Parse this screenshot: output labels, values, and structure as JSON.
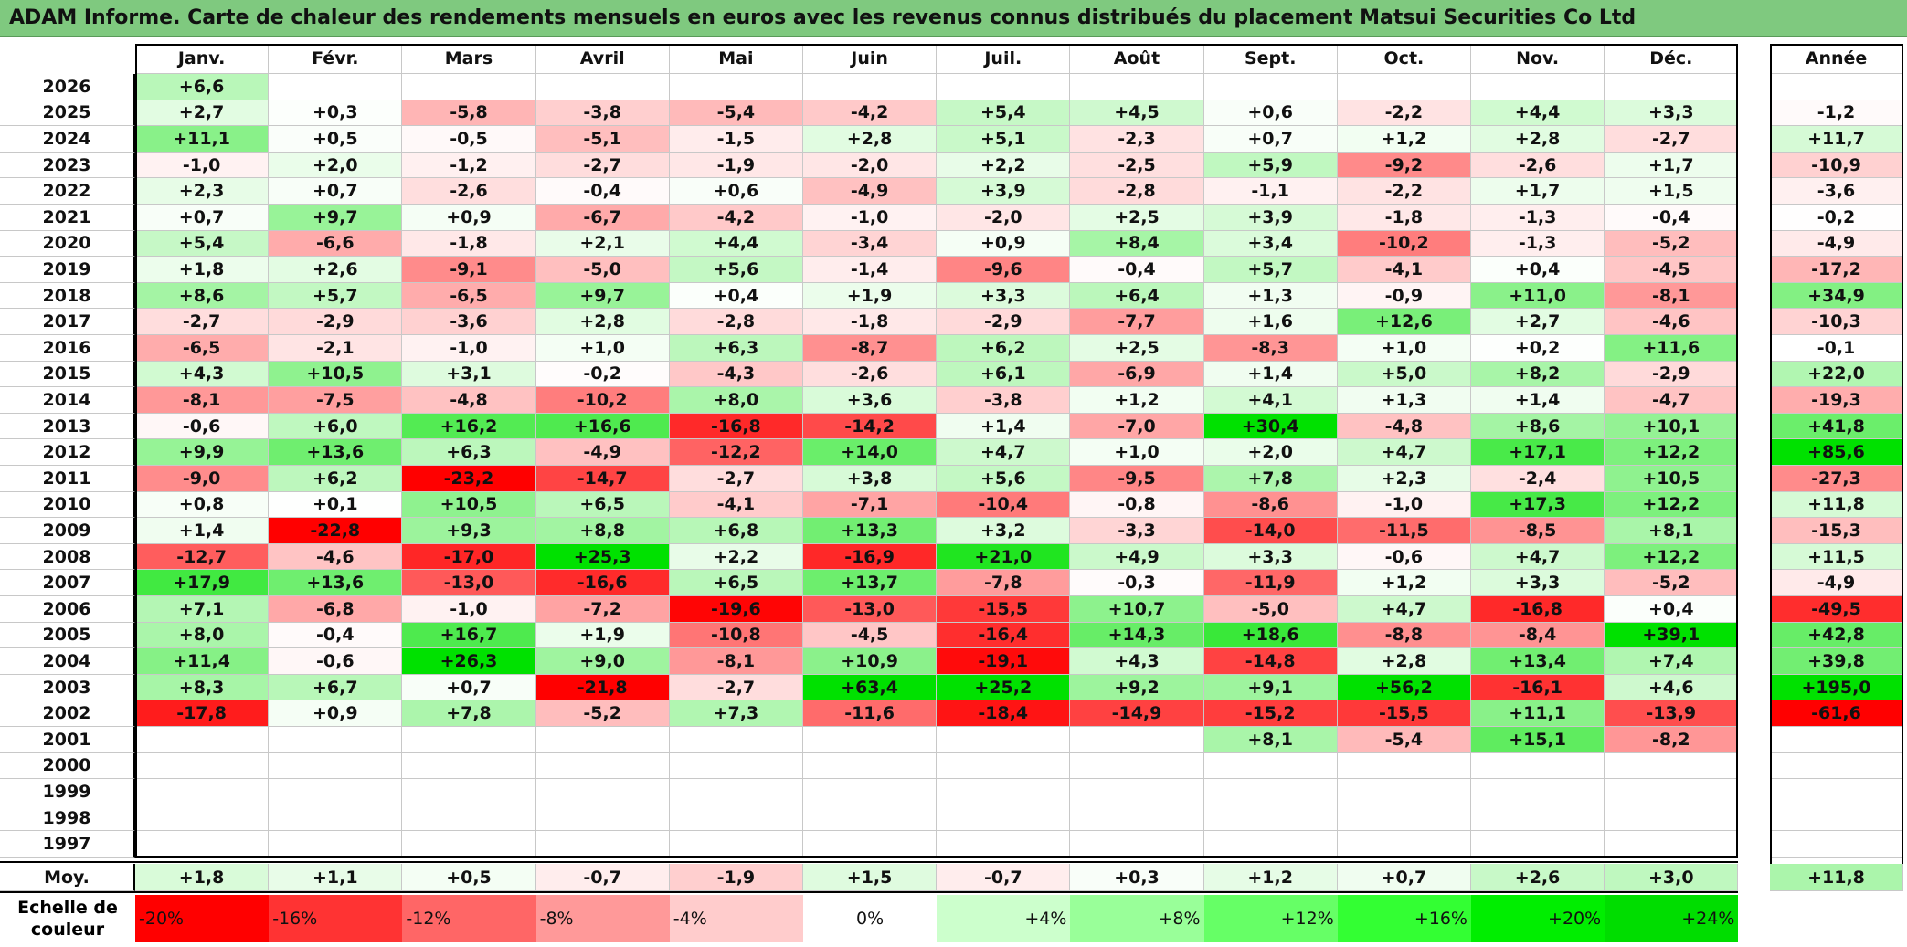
{
  "title": "ADAM Informe. Carte de chaleur des rendements mensuels en euros avec les revenus connus distribués du placement Matsui Securities Co Ltd",
  "chart_data": {
    "type": "heatmap",
    "columns": [
      "Janv.",
      "Févr.",
      "Mars",
      "Avril",
      "Mai",
      "Juin",
      "Juil.",
      "Août",
      "Sept.",
      "Oct.",
      "Nov.",
      "Déc."
    ],
    "year_column": "Année",
    "rows": [
      {
        "year": "2026",
        "months": [
          "+6,6",
          "",
          "",
          "",
          "",
          "",
          "",
          "",
          "",
          "",
          "",
          ""
        ],
        "annual": ""
      },
      {
        "year": "2025",
        "months": [
          "+2,7",
          "+0,3",
          "-5,8",
          "-3,8",
          "-5,4",
          "-4,2",
          "+5,4",
          "+4,5",
          "+0,6",
          "-2,2",
          "+4,4",
          "+3,3"
        ],
        "annual": "-1,2"
      },
      {
        "year": "2024",
        "months": [
          "+11,1",
          "+0,5",
          "-0,5",
          "-5,1",
          "-1,5",
          "+2,8",
          "+5,1",
          "-2,3",
          "+0,7",
          "+1,2",
          "+2,8",
          "-2,7"
        ],
        "annual": "+11,7"
      },
      {
        "year": "2023",
        "months": [
          "-1,0",
          "+2,0",
          "-1,2",
          "-2,7",
          "-1,9",
          "-2,0",
          "+2,2",
          "-2,5",
          "+5,9",
          "-9,2",
          "-2,6",
          "+1,7"
        ],
        "annual": "-10,9"
      },
      {
        "year": "2022",
        "months": [
          "+2,3",
          "+0,7",
          "-2,6",
          "-0,4",
          "+0,6",
          "-4,9",
          "+3,9",
          "-2,8",
          "-1,1",
          "-2,2",
          "+1,7",
          "+1,5"
        ],
        "annual": "-3,6"
      },
      {
        "year": "2021",
        "months": [
          "+0,7",
          "+9,7",
          "+0,9",
          "-6,7",
          "-4,2",
          "-1,0",
          "-2,0",
          "+2,5",
          "+3,9",
          "-1,8",
          "-1,3",
          "-0,4"
        ],
        "annual": "-0,2"
      },
      {
        "year": "2020",
        "months": [
          "+5,4",
          "-6,6",
          "-1,8",
          "+2,1",
          "+4,4",
          "-3,4",
          "+0,9",
          "+8,4",
          "+3,4",
          "-10,2",
          "-1,3",
          "-5,2"
        ],
        "annual": "-4,9"
      },
      {
        "year": "2019",
        "months": [
          "+1,8",
          "+2,6",
          "-9,1",
          "-5,0",
          "+5,6",
          "-1,4",
          "-9,6",
          "-0,4",
          "+5,7",
          "-4,1",
          "+0,4",
          "-4,5"
        ],
        "annual": "-17,2"
      },
      {
        "year": "2018",
        "months": [
          "+8,6",
          "+5,7",
          "-6,5",
          "+9,7",
          "+0,4",
          "+1,9",
          "+3,3",
          "+6,4",
          "+1,3",
          "-0,9",
          "+11,0",
          "-8,1"
        ],
        "annual": "+34,9"
      },
      {
        "year": "2017",
        "months": [
          "-2,7",
          "-2,9",
          "-3,6",
          "+2,8",
          "-2,8",
          "-1,8",
          "-2,9",
          "-7,7",
          "+1,6",
          "+12,6",
          "+2,7",
          "-4,6"
        ],
        "annual": "-10,3"
      },
      {
        "year": "2016",
        "months": [
          "-6,5",
          "-2,1",
          "-1,0",
          "+1,0",
          "+6,3",
          "-8,7",
          "+6,2",
          "+2,5",
          "-8,3",
          "+1,0",
          "+0,2",
          "+11,6"
        ],
        "annual": "-0,1"
      },
      {
        "year": "2015",
        "months": [
          "+4,3",
          "+10,5",
          "+3,1",
          "-0,2",
          "-4,3",
          "-2,6",
          "+6,1",
          "-6,9",
          "+1,4",
          "+5,0",
          "+8,2",
          "-2,9"
        ],
        "annual": "+22,0"
      },
      {
        "year": "2014",
        "months": [
          "-8,1",
          "-7,5",
          "-4,8",
          "-10,2",
          "+8,0",
          "+3,6",
          "-3,8",
          "+1,2",
          "+4,1",
          "+1,3",
          "+1,4",
          "-4,7"
        ],
        "annual": "-19,3"
      },
      {
        "year": "2013",
        "months": [
          "-0,6",
          "+6,0",
          "+16,2",
          "+16,6",
          "-16,8",
          "-14,2",
          "+1,4",
          "-7,0",
          "+30,4",
          "-4,8",
          "+8,6",
          "+10,1"
        ],
        "annual": "+41,8"
      },
      {
        "year": "2012",
        "months": [
          "+9,9",
          "+13,6",
          "+6,3",
          "-4,9",
          "-12,2",
          "+14,0",
          "+4,7",
          "+1,0",
          "+2,0",
          "+4,7",
          "+17,1",
          "+12,2"
        ],
        "annual": "+85,6"
      },
      {
        "year": "2011",
        "months": [
          "-9,0",
          "+6,2",
          "-23,2",
          "-14,7",
          "-2,7",
          "+3,8",
          "+5,6",
          "-9,5",
          "+7,8",
          "+2,3",
          "-2,4",
          "+10,5"
        ],
        "annual": "-27,3"
      },
      {
        "year": "2010",
        "months": [
          "+0,8",
          "+0,1",
          "+10,5",
          "+6,5",
          "-4,1",
          "-7,1",
          "-10,4",
          "-0,8",
          "-8,6",
          "-1,0",
          "+17,3",
          "+12,2"
        ],
        "annual": "+11,8"
      },
      {
        "year": "2009",
        "months": [
          "+1,4",
          "-22,8",
          "+9,3",
          "+8,8",
          "+6,8",
          "+13,3",
          "+3,2",
          "-3,3",
          "-14,0",
          "-11,5",
          "-8,5",
          "+8,1"
        ],
        "annual": "-15,3"
      },
      {
        "year": "2008",
        "months": [
          "-12,7",
          "-4,6",
          "-17,0",
          "+25,3",
          "+2,2",
          "-16,9",
          "+21,0",
          "+4,9",
          "+3,3",
          "-0,6",
          "+4,7",
          "+12,2"
        ],
        "annual": "+11,5"
      },
      {
        "year": "2007",
        "months": [
          "+17,9",
          "+13,6",
          "-13,0",
          "-16,6",
          "+6,5",
          "+13,7",
          "-7,8",
          "-0,3",
          "-11,9",
          "+1,2",
          "+3,3",
          "-5,2"
        ],
        "annual": "-4,9"
      },
      {
        "year": "2006",
        "months": [
          "+7,1",
          "-6,8",
          "-1,0",
          "-7,2",
          "-19,6",
          "-13,0",
          "-15,5",
          "+10,7",
          "-5,0",
          "+4,7",
          "-16,8",
          "+0,4"
        ],
        "annual": "-49,5"
      },
      {
        "year": "2005",
        "months": [
          "+8,0",
          "-0,4",
          "+16,7",
          "+1,9",
          "-10,8",
          "-4,5",
          "-16,4",
          "+14,3",
          "+18,6",
          "-8,8",
          "-8,4",
          "+39,1"
        ],
        "annual": "+42,8"
      },
      {
        "year": "2004",
        "months": [
          "+11,4",
          "-0,6",
          "+26,3",
          "+9,0",
          "-8,1",
          "+10,9",
          "-19,1",
          "+4,3",
          "-14,8",
          "+2,8",
          "+13,4",
          "+7,4"
        ],
        "annual": "+39,8"
      },
      {
        "year": "2003",
        "months": [
          "+8,3",
          "+6,7",
          "+0,7",
          "-21,8",
          "-2,7",
          "+63,4",
          "+25,2",
          "+9,2",
          "+9,1",
          "+56,2",
          "-16,1",
          "+4,6"
        ],
        "annual": "+195,0"
      },
      {
        "year": "2002",
        "months": [
          "-17,8",
          "+0,9",
          "+7,8",
          "-5,2",
          "+7,3",
          "-11,6",
          "-18,4",
          "-14,9",
          "-15,2",
          "-15,5",
          "+11,1",
          "-13,9"
        ],
        "annual": "-61,6"
      },
      {
        "year": "2001",
        "months": [
          "",
          "",
          "",
          "",
          "",
          "",
          "",
          "",
          "+8,1",
          "-5,4",
          "+15,1",
          "-8,2"
        ],
        "annual": ""
      },
      {
        "year": "2000",
        "months": [
          "",
          "",
          "",
          "",
          "",
          "",
          "",
          "",
          "",
          "",
          "",
          ""
        ],
        "annual": ""
      },
      {
        "year": "1999",
        "months": [
          "",
          "",
          "",
          "",
          "",
          "",
          "",
          "",
          "",
          "",
          "",
          ""
        ],
        "annual": ""
      },
      {
        "year": "1998",
        "months": [
          "",
          "",
          "",
          "",
          "",
          "",
          "",
          "",
          "",
          "",
          "",
          ""
        ],
        "annual": ""
      },
      {
        "year": "1997",
        "months": [
          "",
          "",
          "",
          "",
          "",
          "",
          "",
          "",
          "",
          "",
          "",
          ""
        ],
        "annual": ""
      }
    ],
    "average": {
      "label": "Moy.",
      "months": [
        "+1,8",
        "+1,1",
        "+0,5",
        "-0,7",
        "-1,9",
        "+1,5",
        "-0,7",
        "+0,3",
        "+1,2",
        "+0,7",
        "+2,6",
        "+3,0"
      ],
      "annual": "+11,8"
    },
    "scale": {
      "label": "Echelle de couleur",
      "steps": [
        {
          "label": "-20%",
          "value": -20,
          "color": "#ff0000"
        },
        {
          "label": "-16%",
          "value": -16,
          "color": "#ff3333"
        },
        {
          "label": "-12%",
          "value": -12,
          "color": "#ff6666"
        },
        {
          "label": "-8%",
          "value": -8,
          "color": "#ff9999"
        },
        {
          "label": "-4%",
          "value": -4,
          "color": "#ffcccc"
        },
        {
          "label": "0%",
          "value": 0,
          "color": "#ffffff"
        },
        {
          "label": "+4%",
          "value": 4,
          "color": "#ccffcc"
        },
        {
          "label": "+8%",
          "value": 8,
          "color": "#99ff99"
        },
        {
          "label": "+12%",
          "value": 12,
          "color": "#66ff66"
        },
        {
          "label": "+16%",
          "value": 16,
          "color": "#33ff33"
        },
        {
          "label": "+20%",
          "value": 20,
          "color": "#00ee00"
        },
        {
          "label": "+24%",
          "value": 24,
          "color": "#00dd00"
        }
      ]
    }
  }
}
